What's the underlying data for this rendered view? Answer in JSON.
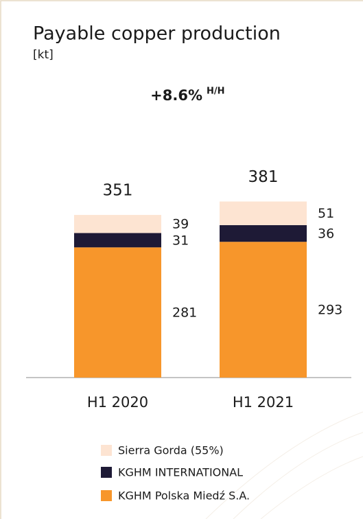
{
  "chart_data": {
    "type": "stacked_bar",
    "title": "Payable copper production",
    "subtitle": "[kt]",
    "annotation": "+8.6%",
    "annotation_suffix": "H/H",
    "categories": [
      "H1 2020",
      "H1 2021"
    ],
    "totals": [
      351,
      381
    ],
    "series": [
      {
        "name": "KGHM Polska Miedź S.A.",
        "color": "#f7962b",
        "values": [
          281,
          293
        ]
      },
      {
        "name": "KGHM INTERNATIONAL",
        "color": "#1e1a36",
        "values": [
          31,
          36
        ]
      },
      {
        "name": "Sierra Gorda (55%)",
        "color": "#fde4d2",
        "values": [
          39,
          51
        ]
      }
    ]
  }
}
